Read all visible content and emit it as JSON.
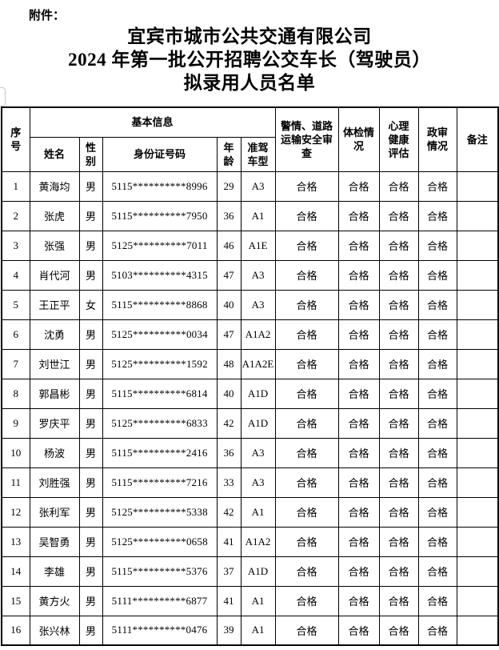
{
  "attachment_label": "附件：",
  "title": {
    "line1": "宜宾市城市公共交通有限公司",
    "line2": "2024 年第一批公开招聘公交车长（驾驶员）",
    "line3": "拟录用人员名单"
  },
  "table": {
    "headers": {
      "serial": "序号",
      "basic_info": "基本信息",
      "name": "姓名",
      "gender": "性别",
      "id_number": "身份证号码",
      "age": "年龄",
      "license_type": "准驾车型",
      "security_review": "警情、道路运输安全审查",
      "physical_exam": "体检情况",
      "mental_health": "心理健康评估",
      "political_review": "政审情况",
      "remarks": "备注"
    },
    "qualified_label": "合格",
    "rows": [
      {
        "no": "1",
        "name": "黄海均",
        "gender": "男",
        "id": "5115**********8996",
        "age": "29",
        "license": "A3",
        "security": "合格",
        "physical": "合格",
        "mental": "合格",
        "political": "合格",
        "remark": ""
      },
      {
        "no": "2",
        "name": "张虎",
        "gender": "男",
        "id": "5115**********7950",
        "age": "36",
        "license": "A1",
        "security": "合格",
        "physical": "合格",
        "mental": "合格",
        "political": "合格",
        "remark": ""
      },
      {
        "no": "3",
        "name": "张强",
        "gender": "男",
        "id": "5125**********7011",
        "age": "46",
        "license": "A1E",
        "security": "合格",
        "physical": "合格",
        "mental": "合格",
        "political": "合格",
        "remark": ""
      },
      {
        "no": "4",
        "name": "肖代河",
        "gender": "男",
        "id": "5103**********4315",
        "age": "47",
        "license": "A3",
        "security": "合格",
        "physical": "合格",
        "mental": "合格",
        "political": "合格",
        "remark": ""
      },
      {
        "no": "5",
        "name": "王正平",
        "gender": "女",
        "id": "5115**********8868",
        "age": "40",
        "license": "A3",
        "security": "合格",
        "physical": "合格",
        "mental": "合格",
        "political": "合格",
        "remark": ""
      },
      {
        "no": "6",
        "name": "沈勇",
        "gender": "男",
        "id": "5125**********0034",
        "age": "47",
        "license": "A1A2",
        "security": "合格",
        "physical": "合格",
        "mental": "合格",
        "political": "合格",
        "remark": ""
      },
      {
        "no": "7",
        "name": "刘世江",
        "gender": "男",
        "id": "5125**********1592",
        "age": "48",
        "license": "A1A2E",
        "security": "合格",
        "physical": "合格",
        "mental": "合格",
        "political": "合格",
        "remark": ""
      },
      {
        "no": "8",
        "name": "郭昌彬",
        "gender": "男",
        "id": "5115**********6814",
        "age": "40",
        "license": "A1D",
        "security": "合格",
        "physical": "合格",
        "mental": "合格",
        "political": "合格",
        "remark": ""
      },
      {
        "no": "9",
        "name": "罗庆平",
        "gender": "男",
        "id": "5125**********6833",
        "age": "42",
        "license": "A1D",
        "security": "合格",
        "physical": "合格",
        "mental": "合格",
        "political": "合格",
        "remark": ""
      },
      {
        "no": "10",
        "name": "杨波",
        "gender": "男",
        "id": "5115**********2416",
        "age": "36",
        "license": "A3",
        "security": "合格",
        "physical": "合格",
        "mental": "合格",
        "political": "合格",
        "remark": ""
      },
      {
        "no": "11",
        "name": "刘胜强",
        "gender": "男",
        "id": "5115**********7216",
        "age": "33",
        "license": "A3",
        "security": "合格",
        "physical": "合格",
        "mental": "合格",
        "political": "合格",
        "remark": ""
      },
      {
        "no": "12",
        "name": "张利军",
        "gender": "男",
        "id": "5125**********5338",
        "age": "42",
        "license": "A1",
        "security": "合格",
        "physical": "合格",
        "mental": "合格",
        "political": "合格",
        "remark": ""
      },
      {
        "no": "13",
        "name": "吴智勇",
        "gender": "男",
        "id": "5125**********0658",
        "age": "41",
        "license": "A1A2",
        "security": "合格",
        "physical": "合格",
        "mental": "合格",
        "political": "合格",
        "remark": ""
      },
      {
        "no": "14",
        "name": "李雄",
        "gender": "男",
        "id": "5115**********5376",
        "age": "37",
        "license": "A1D",
        "security": "合格",
        "physical": "合格",
        "mental": "合格",
        "political": "合格",
        "remark": ""
      },
      {
        "no": "15",
        "name": "黄方火",
        "gender": "男",
        "id": "5111**********6877",
        "age": "41",
        "license": "A1",
        "security": "合格",
        "physical": "合格",
        "mental": "合格",
        "political": "合格",
        "remark": ""
      },
      {
        "no": "16",
        "name": "张兴林",
        "gender": "男",
        "id": "5111**********0476",
        "age": "39",
        "license": "A1",
        "security": "合格",
        "physical": "合格",
        "mental": "合格",
        "political": "合格",
        "remark": ""
      }
    ]
  }
}
